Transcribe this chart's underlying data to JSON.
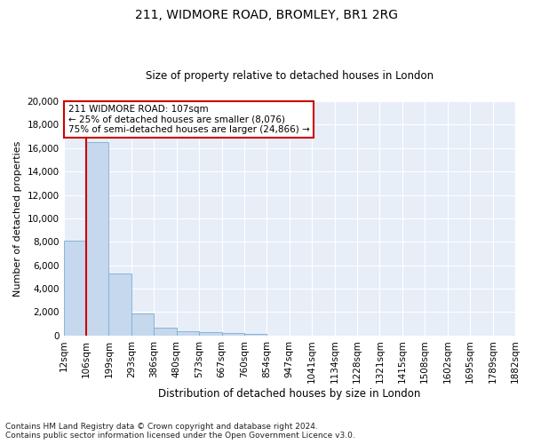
{
  "title": "211, WIDMORE ROAD, BROMLEY, BR1 2RG",
  "subtitle": "Size of property relative to detached houses in London",
  "xlabel": "Distribution of detached houses by size in London",
  "ylabel": "Number of detached properties",
  "bin_labels": [
    "12sqm",
    "106sqm",
    "199sqm",
    "293sqm",
    "386sqm",
    "480sqm",
    "573sqm",
    "667sqm",
    "760sqm",
    "854sqm",
    "947sqm",
    "1041sqm",
    "1134sqm",
    "1228sqm",
    "1321sqm",
    "1415sqm",
    "1508sqm",
    "1602sqm",
    "1695sqm",
    "1789sqm",
    "1882sqm"
  ],
  "bar_values": [
    8076,
    16500,
    5300,
    1850,
    700,
    340,
    270,
    200,
    170,
    0,
    0,
    0,
    0,
    0,
    0,
    0,
    0,
    0,
    0,
    0
  ],
  "bar_color": "#c5d8ed",
  "bar_edge_color": "#7bafd4",
  "vline_x": 1,
  "annotation_line1": "211 WIDMORE ROAD: 107sqm",
  "annotation_line2": "← 25% of detached houses are smaller (8,076)",
  "annotation_line3": "75% of semi-detached houses are larger (24,866) →",
  "annotation_box_color": "#ffffff",
  "annotation_border_color": "#cc0000",
  "vline_color": "#cc0000",
  "ylim": [
    0,
    20000
  ],
  "yticks": [
    0,
    2000,
    4000,
    6000,
    8000,
    10000,
    12000,
    14000,
    16000,
    18000,
    20000
  ],
  "background_color": "#e8eef8",
  "footnote": "Contains HM Land Registry data © Crown copyright and database right 2024.\nContains public sector information licensed under the Open Government Licence v3.0.",
  "title_fontsize": 10,
  "subtitle_fontsize": 8.5,
  "xlabel_fontsize": 8.5,
  "ylabel_fontsize": 8,
  "tick_fontsize": 7.5,
  "footnote_fontsize": 6.5
}
